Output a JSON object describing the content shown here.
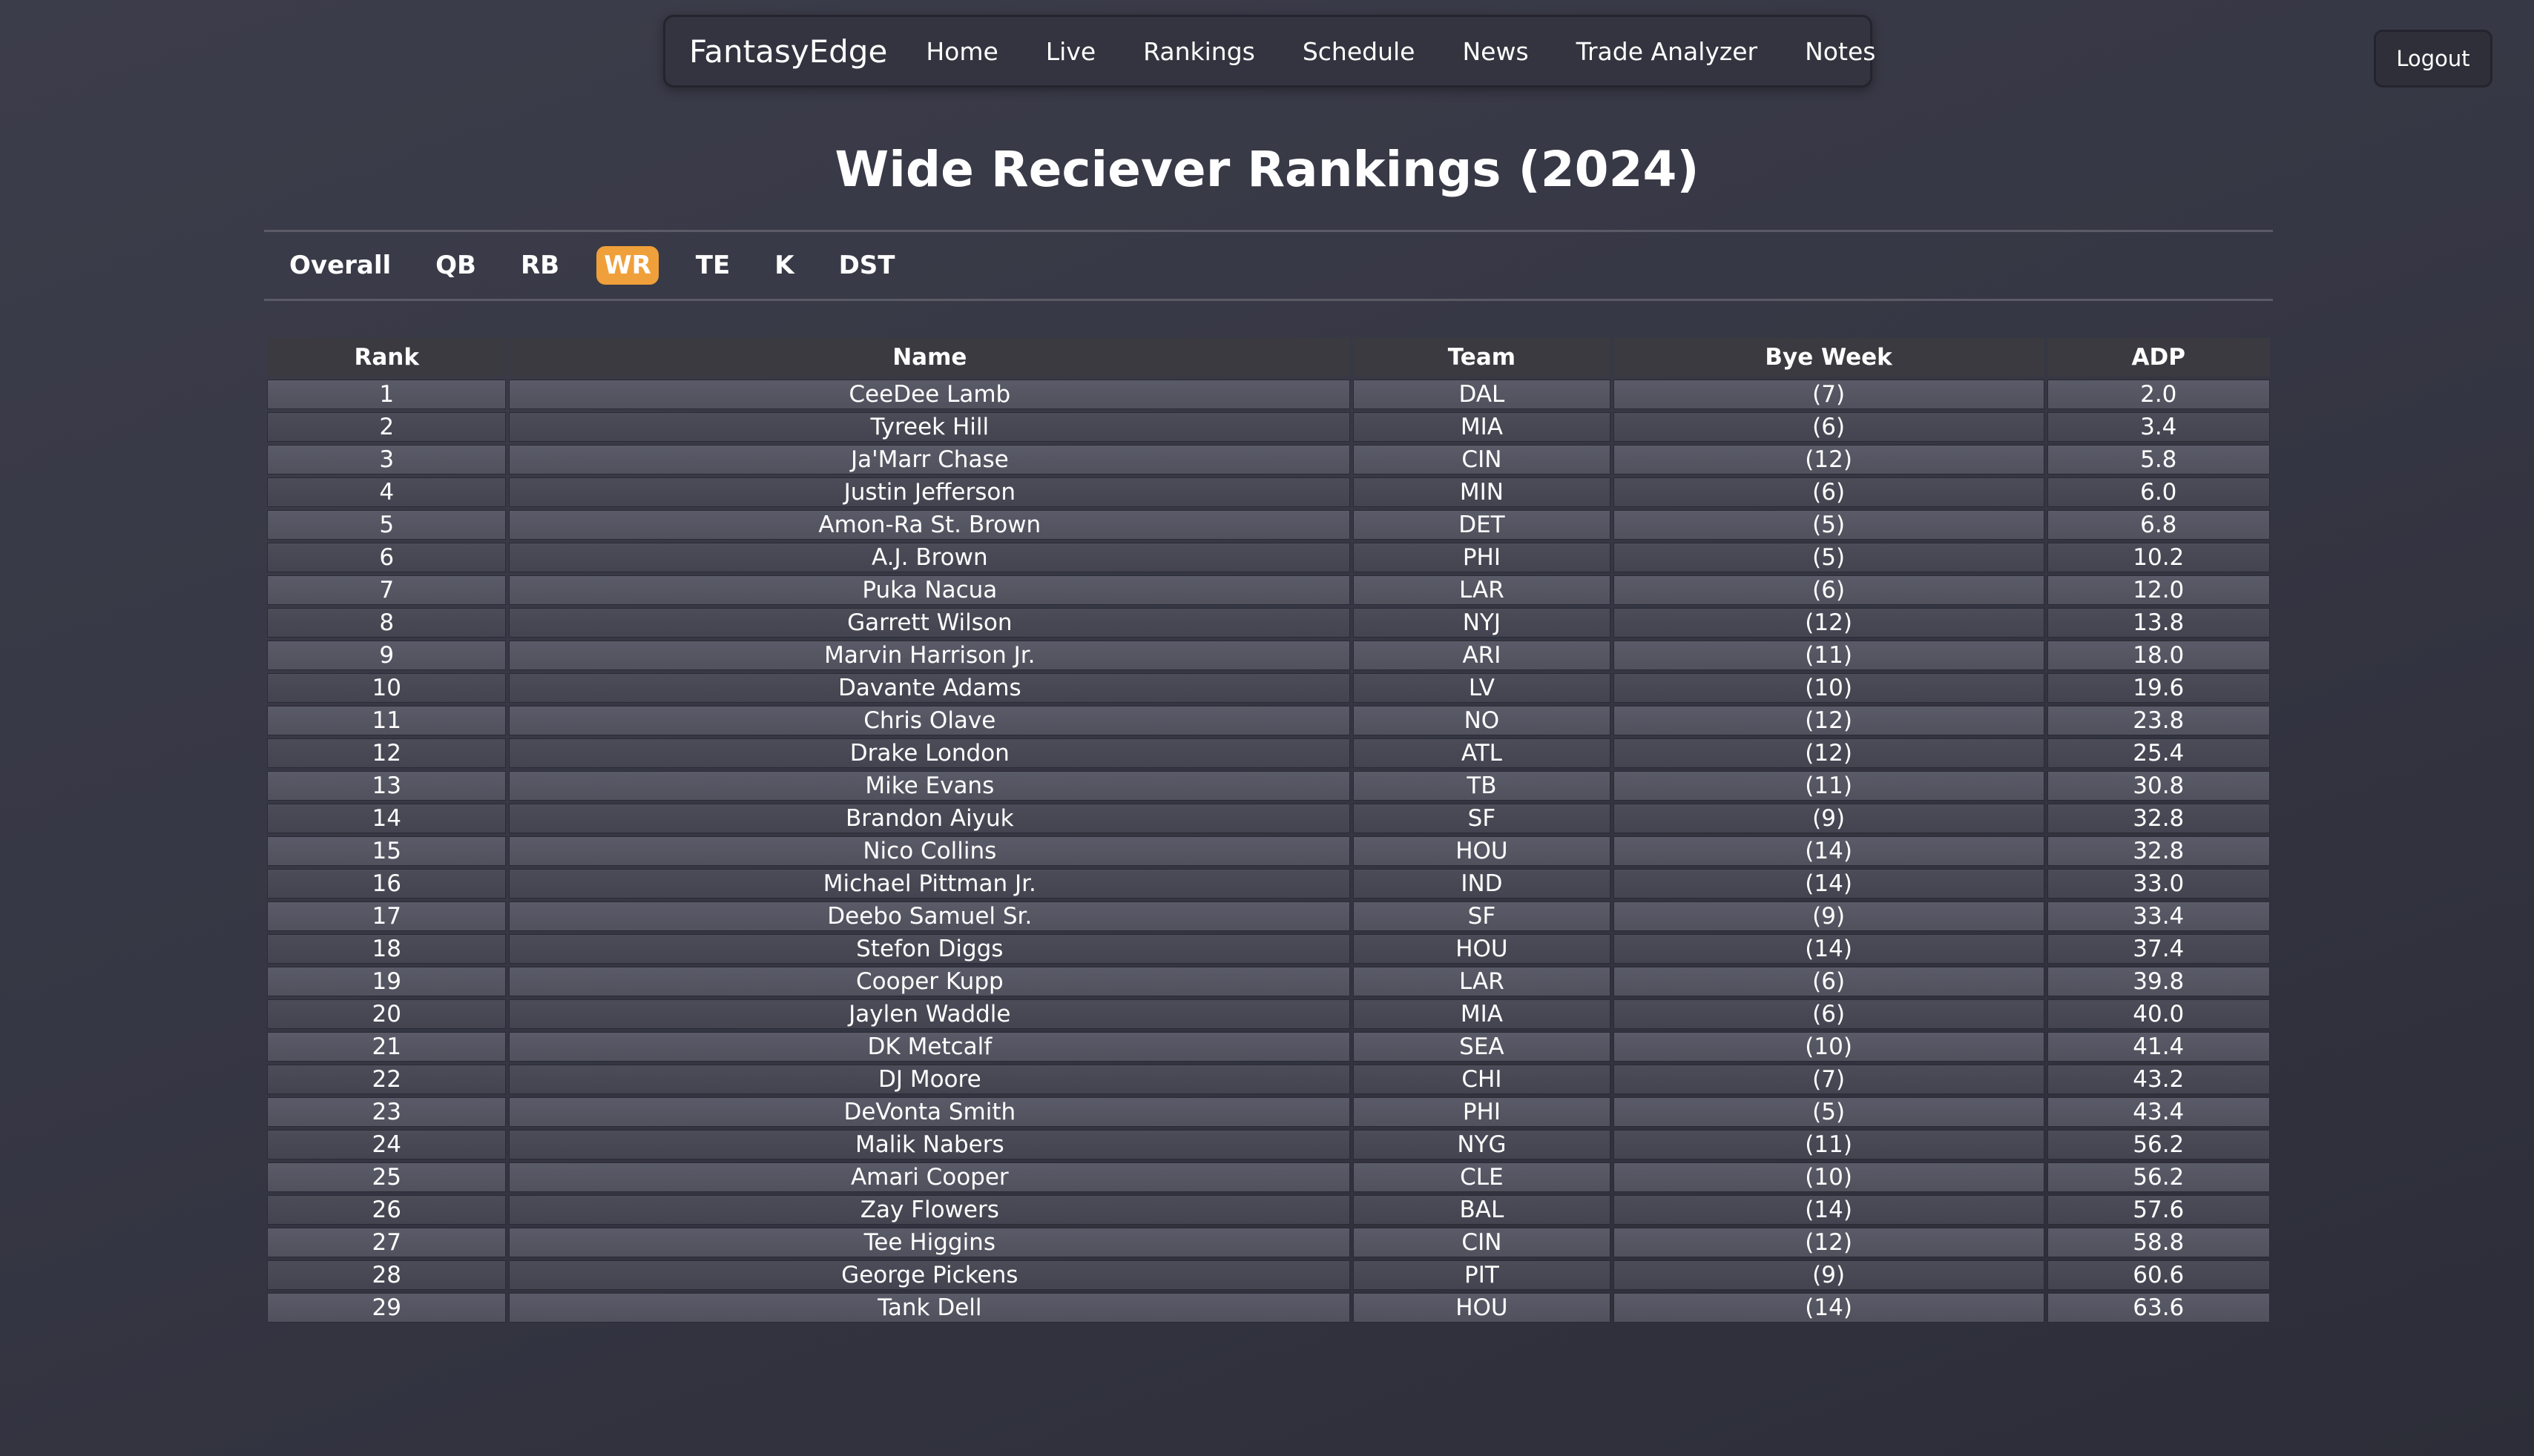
{
  "nav": {
    "brand": "FantasyEdge",
    "links": [
      "Home",
      "Live",
      "Rankings",
      "Schedule",
      "News",
      "Trade Analyzer",
      "Notes"
    ]
  },
  "logout_label": "Logout",
  "page_title": "Wide Reciever Rankings (2024)",
  "tabs": [
    "Overall",
    "QB",
    "RB",
    "WR",
    "TE",
    "K",
    "DST"
  ],
  "active_tab": "WR",
  "colors": {
    "accent": "#f0a03a",
    "background": "#383945",
    "header_cell": "#3b3a40",
    "row_cell": "#55566a"
  },
  "table": {
    "columns": [
      "Rank",
      "Name",
      "Team",
      "Bye Week",
      "ADP"
    ],
    "rows": [
      [
        "1",
        "CeeDee Lamb",
        "DAL",
        "(7)",
        "2.0"
      ],
      [
        "2",
        "Tyreek Hill",
        "MIA",
        "(6)",
        "3.4"
      ],
      [
        "3",
        "Ja'Marr Chase",
        "CIN",
        "(12)",
        "5.8"
      ],
      [
        "4",
        "Justin Jefferson",
        "MIN",
        "(6)",
        "6.0"
      ],
      [
        "5",
        "Amon-Ra St. Brown",
        "DET",
        "(5)",
        "6.8"
      ],
      [
        "6",
        "A.J. Brown",
        "PHI",
        "(5)",
        "10.2"
      ],
      [
        "7",
        "Puka Nacua",
        "LAR",
        "(6)",
        "12.0"
      ],
      [
        "8",
        "Garrett Wilson",
        "NYJ",
        "(12)",
        "13.8"
      ],
      [
        "9",
        "Marvin Harrison Jr.",
        "ARI",
        "(11)",
        "18.0"
      ],
      [
        "10",
        "Davante Adams",
        "LV",
        "(10)",
        "19.6"
      ],
      [
        "11",
        "Chris Olave",
        "NO",
        "(12)",
        "23.8"
      ],
      [
        "12",
        "Drake London",
        "ATL",
        "(12)",
        "25.4"
      ],
      [
        "13",
        "Mike Evans",
        "TB",
        "(11)",
        "30.8"
      ],
      [
        "14",
        "Brandon Aiyuk",
        "SF",
        "(9)",
        "32.8"
      ],
      [
        "15",
        "Nico Collins",
        "HOU",
        "(14)",
        "32.8"
      ],
      [
        "16",
        "Michael Pittman Jr.",
        "IND",
        "(14)",
        "33.0"
      ],
      [
        "17",
        "Deebo Samuel Sr.",
        "SF",
        "(9)",
        "33.4"
      ],
      [
        "18",
        "Stefon Diggs",
        "HOU",
        "(14)",
        "37.4"
      ],
      [
        "19",
        "Cooper Kupp",
        "LAR",
        "(6)",
        "39.8"
      ],
      [
        "20",
        "Jaylen Waddle",
        "MIA",
        "(6)",
        "40.0"
      ],
      [
        "21",
        "DK Metcalf",
        "SEA",
        "(10)",
        "41.4"
      ],
      [
        "22",
        "DJ Moore",
        "CHI",
        "(7)",
        "43.2"
      ],
      [
        "23",
        "DeVonta Smith",
        "PHI",
        "(5)",
        "43.4"
      ],
      [
        "24",
        "Malik Nabers",
        "NYG",
        "(11)",
        "56.2"
      ],
      [
        "25",
        "Amari Cooper",
        "CLE",
        "(10)",
        "56.2"
      ],
      [
        "26",
        "Zay Flowers",
        "BAL",
        "(14)",
        "57.6"
      ],
      [
        "27",
        "Tee Higgins",
        "CIN",
        "(12)",
        "58.8"
      ],
      [
        "28",
        "George Pickens",
        "PIT",
        "(9)",
        "60.6"
      ],
      [
        "29",
        "Tank Dell",
        "HOU",
        "(14)",
        "63.6"
      ]
    ]
  }
}
